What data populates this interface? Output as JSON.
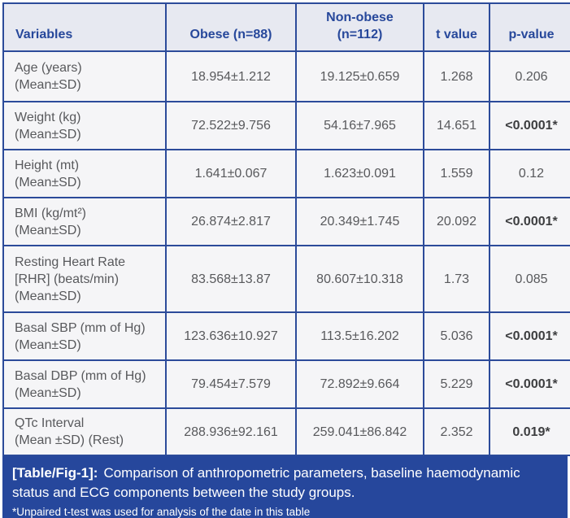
{
  "table": {
    "columns": [
      {
        "key": "variables",
        "lines": [
          "Variables"
        ]
      },
      {
        "key": "obese",
        "lines": [
          "Obese (n=88)"
        ]
      },
      {
        "key": "non-obese",
        "lines": [
          "Non-obese",
          "(n=112)"
        ]
      },
      {
        "key": "t-value",
        "lines": [
          "t value"
        ]
      },
      {
        "key": "p-value",
        "lines": [
          "p-value"
        ]
      }
    ],
    "rows": [
      {
        "variable_lines": [
          "Age (years)",
          "(Mean±SD)"
        ],
        "obese": "18.954±1.212",
        "non_obese": "19.125±0.659",
        "t": "1.268",
        "p": "0.206",
        "p_bold": false
      },
      {
        "variable_lines": [
          "Weight (kg)",
          "(Mean±SD)"
        ],
        "obese": "72.522±9.756",
        "non_obese": "54.16±7.965",
        "t": "14.651",
        "p": "<0.0001*",
        "p_bold": true
      },
      {
        "variable_lines": [
          "Height (mt)",
          "(Mean±SD)"
        ],
        "obese": "1.641±0.067",
        "non_obese": "1.623±0.091",
        "t": "1.559",
        "p": "0.12",
        "p_bold": false
      },
      {
        "variable_lines": [
          "BMI (kg/mt²)",
          "(Mean±SD)"
        ],
        "obese": "26.874±2.817",
        "non_obese": "20.349±1.745",
        "t": "20.092",
        "p": "<0.0001*",
        "p_bold": true
      },
      {
        "variable_lines": [
          "Resting Heart Rate",
          "[RHR] (beats/min)",
          "(Mean±SD)"
        ],
        "obese": "83.568±13.87",
        "non_obese": "80.607±10.318",
        "t": "1.73",
        "p": "0.085",
        "p_bold": false
      },
      {
        "variable_lines": [
          "Basal SBP (mm of Hg)",
          "(Mean±SD)"
        ],
        "obese": "123.636±10.927",
        "non_obese": "113.5±16.202",
        "t": "5.036",
        "p": "<0.0001*",
        "p_bold": true
      },
      {
        "variable_lines": [
          "Basal DBP (mm of Hg)",
          "(Mean±SD)"
        ],
        "obese": "79.454±7.579",
        "non_obese": "72.892±9.664",
        "t": "5.229",
        "p": "<0.0001*",
        "p_bold": true
      },
      {
        "variable_lines": [
          "QTc Interval",
          "(Mean ±SD) (Rest)"
        ],
        "obese": "288.936±92.161",
        "non_obese": "259.041±86.842",
        "t": "2.352",
        "p": "0.019*",
        "p_bold": true
      }
    ]
  },
  "caption": {
    "label": "[Table/Fig-1]:",
    "text": "Comparison of anthropometric parameters, baseline haemodynamic status and ECG components between the study groups.",
    "note": "*Unpaired t-test was used for analysis of the date in this table"
  },
  "colors": {
    "border": "#2c4b9a",
    "header_bg": "#e7e9f1",
    "header_text": "#27489b",
    "row_bg": "#f5f5f7",
    "body_text": "#58595c",
    "caption_bg": "#26479c",
    "caption_text": "#ffffff"
  }
}
